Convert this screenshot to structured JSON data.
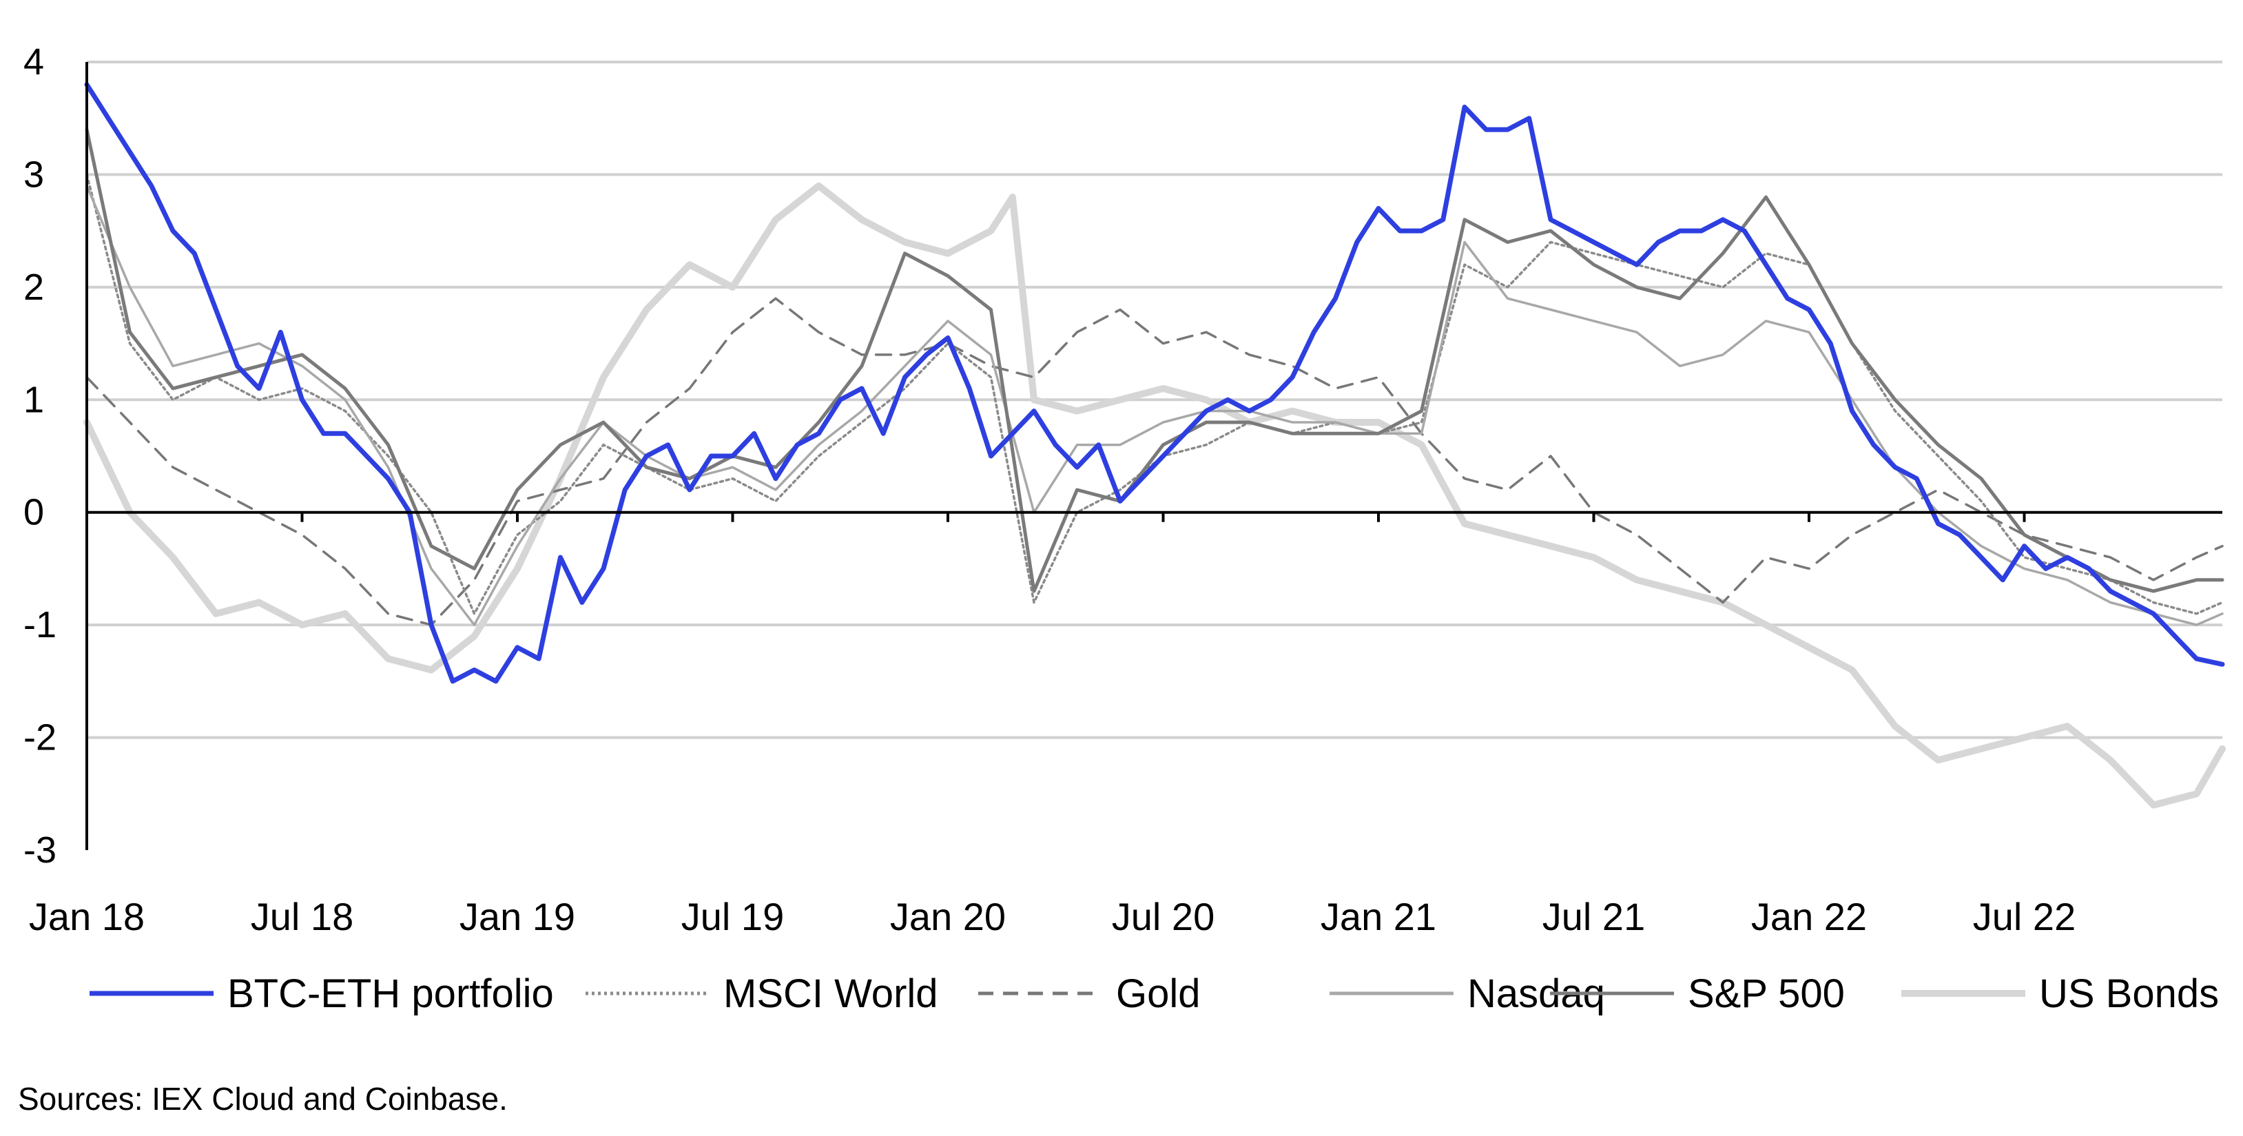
{
  "chart_data": {
    "type": "line",
    "title": "",
    "xlabel": "",
    "ylabel": "",
    "x_ticks": [
      "Jan 18",
      "Jul 18",
      "Jan 19",
      "Jul 19",
      "Jan 20",
      "Jul 20",
      "Jan 21",
      "Jul 21",
      "Jan 22",
      "Jul 22"
    ],
    "y_ticks": [
      "4",
      "3",
      "2",
      "1",
      "0",
      "-1",
      "-2",
      "-3"
    ],
    "ylim": [
      -3,
      4
    ],
    "xlim": [
      2018.0,
      2022.96
    ],
    "grid": true,
    "legend_position": "bottom",
    "series": [
      {
        "name": "BTC-ETH portfolio",
        "color": "#2e3fe0",
        "style": "solid-thick",
        "x": [
          2018.0,
          2018.05,
          2018.1,
          2018.15,
          2018.2,
          2018.25,
          2018.3,
          2018.35,
          2018.4,
          2018.45,
          2018.5,
          2018.55,
          2018.6,
          2018.65,
          2018.7,
          2018.75,
          2018.8,
          2018.85,
          2018.9,
          2018.95,
          2019.0,
          2019.05,
          2019.1,
          2019.15,
          2019.2,
          2019.25,
          2019.3,
          2019.35,
          2019.4,
          2019.45,
          2019.5,
          2019.55,
          2019.6,
          2019.65,
          2019.7,
          2019.75,
          2019.8,
          2019.85,
          2019.9,
          2019.95,
          2020.0,
          2020.05,
          2020.1,
          2020.15,
          2020.2,
          2020.25,
          2020.3,
          2020.35,
          2020.4,
          2020.45,
          2020.5,
          2020.55,
          2020.6,
          2020.65,
          2020.7,
          2020.75,
          2020.8,
          2020.85,
          2020.9,
          2020.95,
          2021.0,
          2021.05,
          2021.1,
          2021.15,
          2021.2,
          2021.25,
          2021.3,
          2021.35,
          2021.4,
          2021.45,
          2021.5,
          2021.55,
          2021.6,
          2021.65,
          2021.7,
          2021.75,
          2021.8,
          2021.85,
          2021.9,
          2021.95,
          2022.0,
          2022.05,
          2022.1,
          2022.15,
          2022.2,
          2022.25,
          2022.3,
          2022.35,
          2022.4,
          2022.45,
          2022.5,
          2022.55,
          2022.6,
          2022.65,
          2022.7,
          2022.75,
          2022.8,
          2022.85,
          2022.9,
          2022.96
        ],
        "values": [
          3.8,
          3.5,
          3.2,
          2.9,
          2.5,
          2.3,
          1.8,
          1.3,
          1.1,
          1.6,
          1.0,
          0.7,
          0.7,
          0.5,
          0.3,
          0.0,
          -1.0,
          -1.5,
          -1.4,
          -1.5,
          -1.2,
          -1.3,
          -0.4,
          -0.8,
          -0.5,
          0.2,
          0.5,
          0.6,
          0.2,
          0.5,
          0.5,
          0.7,
          0.3,
          0.6,
          0.7,
          1.0,
          1.1,
          0.7,
          1.2,
          1.4,
          1.55,
          1.1,
          0.5,
          0.7,
          0.9,
          0.6,
          0.4,
          0.6,
          0.1,
          0.3,
          0.5,
          0.7,
          0.9,
          1.0,
          0.9,
          1.0,
          1.2,
          1.6,
          1.9,
          2.4,
          2.7,
          2.5,
          2.5,
          2.6,
          3.6,
          3.4,
          3.4,
          3.5,
          2.6,
          2.5,
          2.4,
          2.3,
          2.2,
          2.4,
          2.5,
          2.5,
          2.6,
          2.5,
          2.2,
          1.9,
          1.8,
          1.5,
          0.9,
          0.6,
          0.4,
          0.3,
          -0.1,
          -0.2,
          -0.4,
          -0.6,
          -0.3,
          -0.5,
          -0.4,
          -0.5,
          -0.7,
          -0.8,
          -0.9,
          -1.1,
          -1.3,
          -1.35
        ]
      },
      {
        "name": "MSCI World",
        "color": "#8a8a8a",
        "style": "dotted",
        "x": [
          2018.0,
          2018.1,
          2018.2,
          2018.3,
          2018.4,
          2018.5,
          2018.6,
          2018.7,
          2018.8,
          2018.9,
          2019.0,
          2019.1,
          2019.2,
          2019.3,
          2019.4,
          2019.5,
          2019.6,
          2019.7,
          2019.8,
          2019.9,
          2020.0,
          2020.1,
          2020.2,
          2020.3,
          2020.4,
          2020.5,
          2020.6,
          2020.7,
          2020.8,
          2020.9,
          2021.0,
          2021.1,
          2021.2,
          2021.3,
          2021.4,
          2021.5,
          2021.6,
          2021.7,
          2021.8,
          2021.9,
          2022.0,
          2022.1,
          2022.2,
          2022.3,
          2022.4,
          2022.5,
          2022.6,
          2022.7,
          2022.8,
          2022.9,
          2022.96
        ],
        "values": [
          3.0,
          1.5,
          1.0,
          1.2,
          1.0,
          1.1,
          0.9,
          0.5,
          0.0,
          -0.9,
          -0.2,
          0.1,
          0.6,
          0.4,
          0.2,
          0.3,
          0.1,
          0.5,
          0.8,
          1.1,
          1.5,
          1.2,
          -0.8,
          0.0,
          0.2,
          0.5,
          0.6,
          0.8,
          0.7,
          0.8,
          0.7,
          0.8,
          2.2,
          2.0,
          2.4,
          2.3,
          2.2,
          2.1,
          2.0,
          2.3,
          2.2,
          1.5,
          0.9,
          0.5,
          0.1,
          -0.4,
          -0.5,
          -0.6,
          -0.8,
          -0.9,
          -0.8
        ]
      },
      {
        "name": "Gold",
        "color": "#777777",
        "style": "dashed",
        "x": [
          2018.0,
          2018.1,
          2018.2,
          2018.3,
          2018.4,
          2018.5,
          2018.6,
          2018.7,
          2018.8,
          2018.9,
          2019.0,
          2019.1,
          2019.2,
          2019.3,
          2019.4,
          2019.5,
          2019.6,
          2019.7,
          2019.8,
          2019.9,
          2020.0,
          2020.1,
          2020.2,
          2020.3,
          2020.4,
          2020.5,
          2020.6,
          2020.7,
          2020.8,
          2020.9,
          2021.0,
          2021.1,
          2021.2,
          2021.3,
          2021.4,
          2021.5,
          2021.6,
          2021.7,
          2021.8,
          2021.9,
          2022.0,
          2022.1,
          2022.2,
          2022.3,
          2022.4,
          2022.5,
          2022.6,
          2022.7,
          2022.8,
          2022.9,
          2022.96
        ],
        "values": [
          1.2,
          0.8,
          0.4,
          0.2,
          0.0,
          -0.2,
          -0.5,
          -0.9,
          -1.0,
          -0.6,
          0.1,
          0.2,
          0.3,
          0.8,
          1.1,
          1.6,
          1.9,
          1.6,
          1.4,
          1.4,
          1.5,
          1.3,
          1.2,
          1.6,
          1.8,
          1.5,
          1.6,
          1.4,
          1.3,
          1.1,
          1.2,
          0.7,
          0.3,
          0.2,
          0.5,
          0.0,
          -0.2,
          -0.5,
          -0.8,
          -0.4,
          -0.5,
          -0.2,
          0.0,
          0.2,
          0.0,
          -0.2,
          -0.3,
          -0.4,
          -0.6,
          -0.4,
          -0.3
        ]
      },
      {
        "name": "Nasdaq",
        "color": "#a8a8a8",
        "style": "solid-thin",
        "x": [
          2018.0,
          2018.1,
          2018.2,
          2018.3,
          2018.4,
          2018.5,
          2018.6,
          2018.7,
          2018.8,
          2018.9,
          2019.0,
          2019.1,
          2019.2,
          2019.3,
          2019.4,
          2019.5,
          2019.6,
          2019.7,
          2019.8,
          2019.9,
          2020.0,
          2020.1,
          2020.2,
          2020.3,
          2020.4,
          2020.5,
          2020.6,
          2020.7,
          2020.8,
          2020.9,
          2021.0,
          2021.1,
          2021.2,
          2021.3,
          2021.4,
          2021.5,
          2021.6,
          2021.7,
          2021.8,
          2021.9,
          2022.0,
          2022.1,
          2022.2,
          2022.3,
          2022.4,
          2022.5,
          2022.6,
          2022.7,
          2022.8,
          2022.9,
          2022.96
        ],
        "values": [
          2.9,
          2.0,
          1.3,
          1.4,
          1.5,
          1.3,
          1.0,
          0.4,
          -0.5,
          -1.0,
          -0.3,
          0.3,
          0.8,
          0.5,
          0.3,
          0.4,
          0.2,
          0.6,
          0.9,
          1.3,
          1.7,
          1.4,
          0.0,
          0.6,
          0.6,
          0.8,
          0.9,
          0.9,
          0.8,
          0.8,
          0.7,
          0.7,
          2.4,
          1.9,
          1.8,
          1.7,
          1.6,
          1.3,
          1.4,
          1.7,
          1.6,
          1.0,
          0.4,
          0.0,
          -0.3,
          -0.5,
          -0.6,
          -0.8,
          -0.9,
          -1.0,
          -0.9
        ]
      },
      {
        "name": "S&P 500",
        "color": "#7a7a7a",
        "style": "solid",
        "x": [
          2018.0,
          2018.1,
          2018.2,
          2018.3,
          2018.4,
          2018.5,
          2018.6,
          2018.7,
          2018.8,
          2018.9,
          2019.0,
          2019.1,
          2019.2,
          2019.3,
          2019.4,
          2019.5,
          2019.6,
          2019.7,
          2019.8,
          2019.9,
          2020.0,
          2020.1,
          2020.2,
          2020.3,
          2020.4,
          2020.5,
          2020.6,
          2020.7,
          2020.8,
          2020.9,
          2021.0,
          2021.1,
          2021.2,
          2021.3,
          2021.4,
          2021.5,
          2021.6,
          2021.7,
          2021.8,
          2021.9,
          2022.0,
          2022.1,
          2022.2,
          2022.3,
          2022.4,
          2022.5,
          2022.6,
          2022.7,
          2022.8,
          2022.9,
          2022.96
        ],
        "values": [
          3.4,
          1.6,
          1.1,
          1.2,
          1.3,
          1.4,
          1.1,
          0.6,
          -0.3,
          -0.5,
          0.2,
          0.6,
          0.8,
          0.4,
          0.3,
          0.5,
          0.4,
          0.8,
          1.3,
          2.3,
          2.1,
          1.8,
          -0.7,
          0.2,
          0.1,
          0.6,
          0.8,
          0.8,
          0.7,
          0.7,
          0.7,
          0.9,
          2.6,
          2.4,
          2.5,
          2.2,
          2.0,
          1.9,
          2.3,
          2.8,
          2.2,
          1.5,
          1.0,
          0.6,
          0.3,
          -0.2,
          -0.4,
          -0.6,
          -0.7,
          -0.6,
          -0.6
        ]
      },
      {
        "name": "US Bonds",
        "color": "#d6d6d6",
        "style": "solid-thick",
        "x": [
          2018.0,
          2018.1,
          2018.2,
          2018.3,
          2018.4,
          2018.5,
          2018.6,
          2018.7,
          2018.8,
          2018.9,
          2019.0,
          2019.1,
          2019.2,
          2019.3,
          2019.4,
          2019.5,
          2019.6,
          2019.7,
          2019.8,
          2019.9,
          2020.0,
          2020.1,
          2020.15,
          2020.2,
          2020.3,
          2020.4,
          2020.5,
          2020.6,
          2020.7,
          2020.8,
          2020.9,
          2021.0,
          2021.1,
          2021.2,
          2021.3,
          2021.4,
          2021.5,
          2021.6,
          2021.7,
          2021.8,
          2021.9,
          2022.0,
          2022.1,
          2022.2,
          2022.3,
          2022.4,
          2022.5,
          2022.6,
          2022.7,
          2022.8,
          2022.9,
          2022.96
        ],
        "values": [
          0.8,
          0.0,
          -0.4,
          -0.9,
          -0.8,
          -1.0,
          -0.9,
          -1.3,
          -1.4,
          -1.1,
          -0.5,
          0.3,
          1.2,
          1.8,
          2.2,
          2.0,
          2.6,
          2.9,
          2.6,
          2.4,
          2.3,
          2.5,
          2.8,
          1.0,
          0.9,
          1.0,
          1.1,
          1.0,
          0.8,
          0.9,
          0.8,
          0.8,
          0.6,
          -0.1,
          -0.2,
          -0.3,
          -0.4,
          -0.6,
          -0.7,
          -0.8,
          -1.0,
          -1.2,
          -1.4,
          -1.9,
          -2.2,
          -2.1,
          -2.0,
          -1.9,
          -2.2,
          -2.6,
          -2.5,
          -2.1
        ]
      }
    ]
  },
  "legend_labels": [
    "BTC-ETH portfolio",
    "MSCI World",
    "Gold",
    "Nasdaq",
    "S&P 500",
    "US Bonds"
  ],
  "source_note": "Sources: IEX Cloud and Coinbase."
}
